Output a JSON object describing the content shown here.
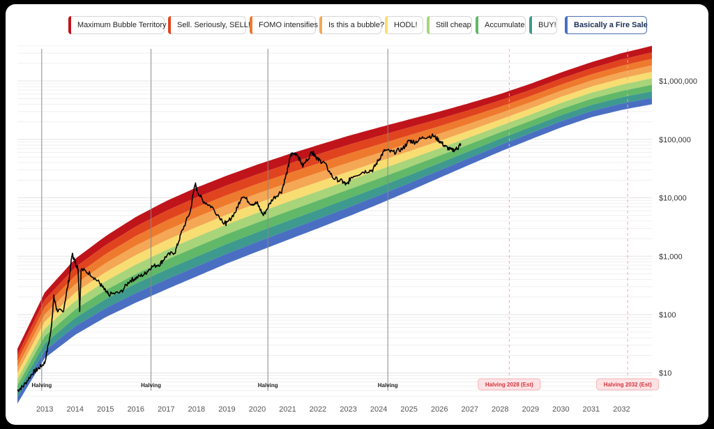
{
  "legend": [
    {
      "label": "Maximum Bubble Territory",
      "color": "#c0141b"
    },
    {
      "label": "Sell. Seriously, SELL!",
      "color": "#e0441f"
    },
    {
      "label": "FOMO intensifies",
      "color": "#ee7a2e"
    },
    {
      "label": "Is this a bubble?",
      "color": "#f4a755"
    },
    {
      "label": "HODL!",
      "color": "#f8dd72"
    },
    {
      "label": "Still cheap",
      "color": "#a8d47a"
    },
    {
      "label": "Accumulate",
      "color": "#61b868"
    },
    {
      "label": "BUY!",
      "color": "#3e9a8e"
    },
    {
      "label": "Basically a Fire Sale",
      "color": "#4a6fc2",
      "active": true
    }
  ],
  "chart_data": {
    "type": "area",
    "y_scale": "log",
    "ylim": [
      4,
      4200000
    ],
    "xlim": [
      2012.1,
      2033.0
    ],
    "x_ticks": [
      2013,
      2014,
      2015,
      2016,
      2017,
      2018,
      2019,
      2020,
      2021,
      2022,
      2023,
      2024,
      2025,
      2026,
      2027,
      2028,
      2029,
      2030,
      2031,
      2032
    ],
    "y_ticks": [
      {
        "value": 10,
        "label": "$10"
      },
      {
        "value": 100,
        "label": "$100"
      },
      {
        "value": 1000,
        "label": "$1,000"
      },
      {
        "value": 10000,
        "label": "$10,000"
      },
      {
        "value": 100000,
        "label": "$100,000"
      },
      {
        "value": 1000000,
        "label": "$1,000,000"
      }
    ],
    "bands": {
      "x": [
        2012.1,
        2013,
        2014,
        2015,
        2016,
        2017,
        2018,
        2019,
        2020,
        2021,
        2022,
        2023,
        2024,
        2025,
        2026,
        2027,
        2028,
        2029,
        2030,
        2031,
        2032,
        2033
      ],
      "upper": [
        26,
        240,
        900,
        2200,
        4700,
        8800,
        15000,
        24000,
        37000,
        55000,
        80000,
        115000,
        160000,
        220000,
        300000,
        420000,
        600000,
        900000,
        1400000,
        2100000,
        3000000,
        4000000
      ],
      "lower": [
        3,
        18,
        45,
        90,
        160,
        270,
        450,
        750,
        1200,
        1900,
        3000,
        4800,
        7800,
        13000,
        22000,
        37000,
        62000,
        100000,
        160000,
        240000,
        320000,
        400000
      ]
    },
    "price": {
      "x": [
        2012.1,
        2012.3,
        2012.6,
        2012.8,
        2013.0,
        2013.2,
        2013.3,
        2013.4,
        2013.6,
        2013.8,
        2013.9,
        2014.0,
        2014.1,
        2014.15,
        2014.2,
        2014.5,
        2014.8,
        2015.0,
        2015.1,
        2015.5,
        2015.8,
        2016.0,
        2016.3,
        2016.5,
        2016.8,
        2017.0,
        2017.3,
        2017.5,
        2017.8,
        2017.95,
        2018.0,
        2018.2,
        2018.5,
        2018.9,
        2019.0,
        2019.3,
        2019.5,
        2019.8,
        2020.0,
        2020.2,
        2020.5,
        2020.8,
        2021.0,
        2021.1,
        2021.3,
        2021.5,
        2021.8,
        2021.9,
        2022.0,
        2022.2,
        2022.5,
        2022.8,
        2022.95,
        2023.1,
        2023.5,
        2023.8,
        2024.0,
        2024.2,
        2024.5,
        2024.8,
        2025.0,
        2025.2,
        2025.5,
        2025.8,
        2026.0,
        2026.2,
        2026.4,
        2026.6,
        2026.7
      ],
      "y": [
        5,
        6,
        10,
        12,
        15,
        50,
        200,
        120,
        110,
        400,
        1100,
        800,
        600,
        120,
        600,
        500,
        350,
        250,
        220,
        240,
        380,
        420,
        500,
        650,
        740,
        1000,
        1200,
        2500,
        6000,
        18000,
        14000,
        9000,
        7000,
        3800,
        3600,
        6000,
        11000,
        8000,
        8000,
        5000,
        9500,
        13000,
        30000,
        55000,
        58000,
        35000,
        60000,
        55000,
        45000,
        40000,
        22000,
        19000,
        16500,
        23000,
        28000,
        30000,
        45000,
        65000,
        60000,
        70000,
        95000,
        90000,
        110000,
        115000,
        95000,
        75000,
        65000,
        70000,
        85000
      ]
    },
    "halvings": [
      {
        "x": 2012.9,
        "label": "Halving",
        "estimated": false
      },
      {
        "x": 2016.5,
        "label": "Halving",
        "estimated": false
      },
      {
        "x": 2020.35,
        "label": "Halving",
        "estimated": false
      },
      {
        "x": 2024.3,
        "label": "Halving",
        "estimated": false
      },
      {
        "x": 2028.3,
        "label": "Halving 2028 (Est)",
        "estimated": true
      },
      {
        "x": 2032.2,
        "label": "Halving 2032 (Est)",
        "estimated": true
      }
    ]
  }
}
